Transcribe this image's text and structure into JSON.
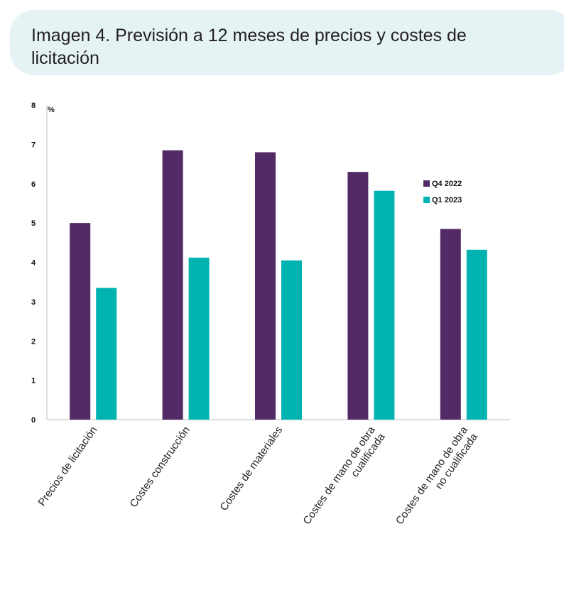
{
  "title": "Imagen 4. Previsión a 12 meses de precios y costes de licitación",
  "chart_data": {
    "type": "bar",
    "unit": "%",
    "ylim": [
      0,
      8
    ],
    "yticks": [
      "0",
      "1",
      "2",
      "3",
      "4",
      "5",
      "6",
      "7",
      "8"
    ],
    "categories": [
      [
        "Precios de licitación"
      ],
      [
        "Costes construcción"
      ],
      [
        "Costes de materiales"
      ],
      [
        "Costes de mano de obra",
        "cualificada"
      ],
      [
        "Costes de mano de obra",
        "no cualificada"
      ]
    ],
    "series": [
      {
        "name": "Q4 2022",
        "color": "#522a66",
        "values": [
          5.0,
          6.85,
          6.8,
          6.3,
          4.85
        ]
      },
      {
        "name": "Q1 2023",
        "color": "#00b2b0",
        "values": [
          3.35,
          4.12,
          4.05,
          5.82,
          4.32
        ]
      }
    ],
    "legend_position": "right",
    "grid": false
  }
}
